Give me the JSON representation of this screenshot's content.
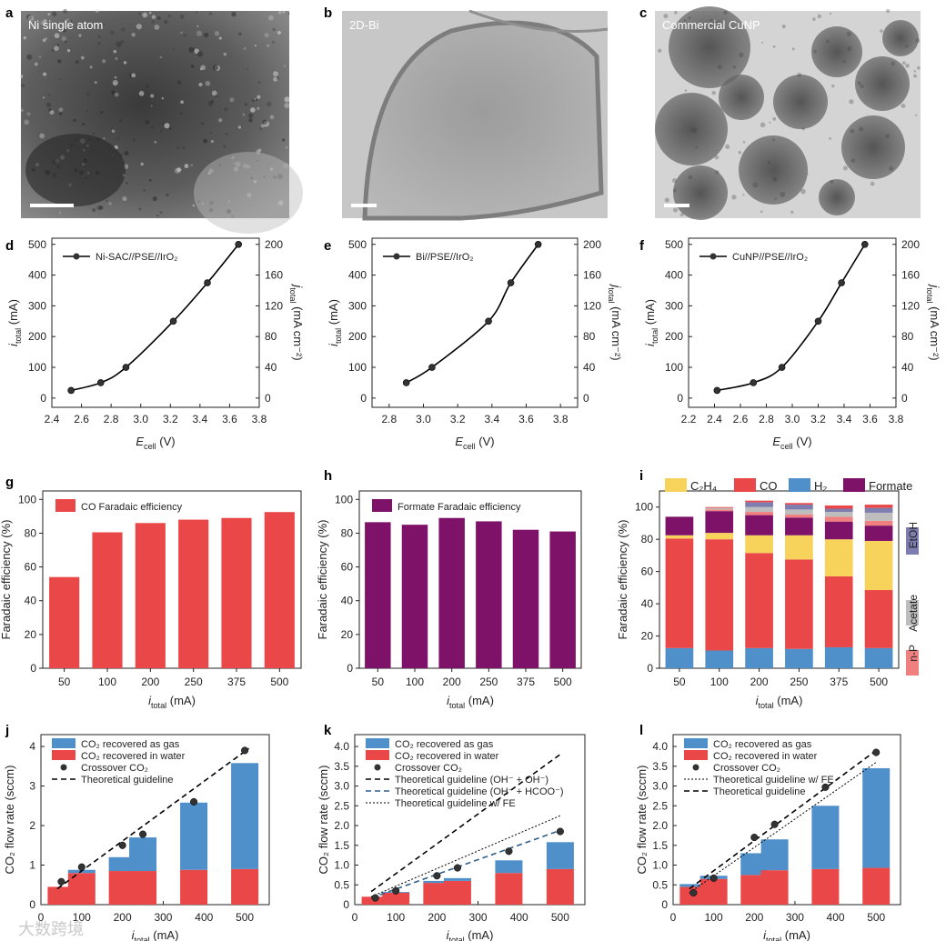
{
  "panel_letters": [
    "a",
    "b",
    "c",
    "d",
    "e",
    "f",
    "g",
    "h",
    "i",
    "j",
    "k",
    "l"
  ],
  "colors": {
    "co": "#ea4848",
    "formate": "#7e1168",
    "c2h4": "#f8d35c",
    "h2": "#4f8fca",
    "etoh": "#7d7db0",
    "acetate": "#bdbdbd",
    "np": "#f08080",
    "gas": "#4f8fca",
    "water": "#ea4848",
    "marker": "#333333",
    "curve": "#000000"
  },
  "images": [
    {
      "label": "Ni single atom",
      "tone": "dark-tem"
    },
    {
      "label": "2D-Bi",
      "tone": "light-tem"
    },
    {
      "label": "Commercial CuNP",
      "tone": "particles-tem"
    }
  ],
  "chart_data": [
    {
      "panel": "d",
      "type": "line",
      "xlabel_main": "E",
      "xlabel_sub": "cell",
      "xlabel_unit": " (V)",
      "ylabel_main": "i",
      "ylabel_sub": "total",
      "ylabel_unit": " (mA)",
      "y2label_main": "j",
      "y2label_sub": "total",
      "y2label_unit": " (mA cm⁻²)",
      "legend": "Ni-SAC//PSE//IrO₂",
      "xlim": [
        2.4,
        3.8
      ],
      "ylim": [
        -30,
        520
      ],
      "xticks": [
        "2.4",
        "2.6",
        "2.8",
        "3.0",
        "3.2",
        "3.4",
        "3.6",
        "3.8"
      ],
      "yticks": [
        "0",
        "100",
        "200",
        "300",
        "400",
        "500"
      ],
      "y2ticks": [
        "0",
        "40",
        "80",
        "120",
        "160",
        "200"
      ],
      "x": [
        2.53,
        2.73,
        2.9,
        3.22,
        3.45,
        3.66
      ],
      "y": [
        25,
        50,
        100,
        250,
        375,
        500
      ]
    },
    {
      "panel": "e",
      "type": "line",
      "xlabel_main": "E",
      "xlabel_sub": "cell",
      "xlabel_unit": " (V)",
      "ylabel_main": "i",
      "ylabel_sub": "total",
      "ylabel_unit": " (mA)",
      "y2label_main": "j",
      "y2label_sub": "total",
      "y2label_unit": " (mA cm⁻²)",
      "legend": "Bi//PSE//IrO₂",
      "xlim": [
        2.7,
        3.9
      ],
      "ylim": [
        -30,
        520
      ],
      "xticks": [
        "2.8",
        "3.0",
        "3.2",
        "3.4",
        "3.6",
        "3.8"
      ],
      "yticks": [
        "0",
        "100",
        "200",
        "300",
        "400",
        "500"
      ],
      "y2ticks": [
        "0",
        "40",
        "80",
        "120",
        "160",
        "200"
      ],
      "x": [
        2.9,
        3.05,
        3.38,
        3.51,
        3.67
      ],
      "y": [
        50,
        100,
        250,
        375,
        500
      ]
    },
    {
      "panel": "f",
      "type": "line",
      "xlabel_main": "E",
      "xlabel_sub": "cell",
      "xlabel_unit": " (V)",
      "ylabel_main": "i",
      "ylabel_sub": "total",
      "ylabel_unit": " (mA)",
      "y2label_main": "j",
      "y2label_sub": "total",
      "y2label_unit": " (mA cm⁻²)",
      "legend": "CuNP//PSE//IrO₂",
      "xlim": [
        2.2,
        3.8
      ],
      "ylim": [
        -30,
        520
      ],
      "xticks": [
        "2.2",
        "2.4",
        "2.6",
        "2.8",
        "3.0",
        "3.2",
        "3.4",
        "3.6",
        "3.8"
      ],
      "yticks": [
        "0",
        "100",
        "200",
        "300",
        "400",
        "500"
      ],
      "y2ticks": [
        "0",
        "40",
        "80",
        "120",
        "160",
        "200"
      ],
      "x": [
        2.42,
        2.7,
        2.92,
        3.2,
        3.38,
        3.56
      ],
      "y": [
        25,
        50,
        100,
        250,
        375,
        500
      ]
    },
    {
      "panel": "g",
      "type": "bar",
      "xlabel_main": "i",
      "xlabel_sub": "total",
      "xlabel_unit": " (mA)",
      "ylabel": "Faradaic efficiency (%)",
      "ylim": [
        0,
        105
      ],
      "yticks": [
        "0",
        "20",
        "40",
        "60",
        "80",
        "100"
      ],
      "categories": [
        "50",
        "100",
        "200",
        "250",
        "375",
        "500"
      ],
      "series": [
        {
          "name": "CO Faradaic efficiency",
          "values": [
            54,
            80.5,
            86,
            88,
            89,
            92.5
          ]
        }
      ]
    },
    {
      "panel": "h",
      "type": "bar",
      "xlabel_main": "i",
      "xlabel_sub": "total",
      "xlabel_unit": " (mA)",
      "ylabel": "Faradaic efficiency (%)",
      "ylim": [
        0,
        105
      ],
      "yticks": [
        "0",
        "20",
        "40",
        "60",
        "80",
        "100"
      ],
      "categories": [
        "50",
        "100",
        "200",
        "250",
        "375",
        "500"
      ],
      "series": [
        {
          "name": "Formate Faradaic efficiency",
          "values": [
            86.5,
            85,
            89,
            87,
            82,
            81
          ]
        }
      ]
    },
    {
      "panel": "i",
      "type": "bar",
      "stacked": true,
      "xlabel_main": "i",
      "xlabel_sub": "total",
      "xlabel_unit": " (mA)",
      "ylabel": "Faradaic efficiency (%)",
      "ylim": [
        0,
        110
      ],
      "yticks": [
        "0",
        "20",
        "40",
        "60",
        "80",
        "100"
      ],
      "categories": [
        "50",
        "100",
        "200",
        "250",
        "375",
        "500"
      ],
      "legend_items": [
        {
          "name": "C₂H₄",
          "key": "c2h4"
        },
        {
          "name": "CO",
          "key": "co"
        },
        {
          "name": "H₂",
          "key": "h2"
        },
        {
          "name": "Formate",
          "key": "formate"
        }
      ],
      "side_labels": [
        {
          "name": "EtOH",
          "key": "etoh"
        },
        {
          "name": "Acetate",
          "key": "acetate"
        },
        {
          "name": "n-P",
          "key": "np"
        }
      ],
      "series": [
        {
          "key": "h2",
          "values": [
            12.5,
            11,
            12.5,
            12,
            13,
            12.5
          ]
        },
        {
          "key": "co",
          "values": [
            68,
            69,
            59,
            55.5,
            44,
            36
          ]
        },
        {
          "key": "c2h4",
          "values": [
            2,
            4,
            11,
            15,
            23,
            30.5
          ]
        },
        {
          "key": "formate",
          "values": [
            11.5,
            13.5,
            12.5,
            11,
            11,
            9.5
          ]
        },
        {
          "key": "np",
          "values": [
            0,
            1,
            2,
            2,
            3,
            3
          ]
        },
        {
          "key": "acetate",
          "values": [
            0,
            1,
            3,
            3,
            3,
            5
          ]
        },
        {
          "key": "etoh",
          "values": [
            0,
            0,
            3,
            3,
            2,
            3
          ]
        },
        {
          "key": "co",
          "values": [
            0,
            0.5,
            1,
            1,
            2,
            2
          ]
        }
      ]
    },
    {
      "panel": "j",
      "type": "bar",
      "stacked": true,
      "xlabel_main": "i",
      "xlabel_sub": "total",
      "xlabel_unit": " (mA)",
      "ylabel": "CO₂ flow rate (sccm)",
      "xlim": [
        0,
        560
      ],
      "ylim": [
        0,
        4.3
      ],
      "xticks": [
        "0",
        "100",
        "200",
        "300",
        "400",
        "500"
      ],
      "yticks": [
        "0",
        "1",
        "2",
        "3",
        "4"
      ],
      "legend_items": [
        "CO₂ recovered as gas",
        "CO₂ recovered in water",
        "Crossover CO₂",
        "Theoretical guideline"
      ],
      "x": [
        50,
        100,
        200,
        250,
        375,
        500
      ],
      "water": [
        0.45,
        0.8,
        0.85,
        0.85,
        0.88,
        0.9
      ],
      "gas": [
        0,
        0.08,
        0.35,
        0.85,
        1.7,
        2.68
      ],
      "crossover": [
        0.58,
        0.95,
        1.5,
        1.78,
        2.6,
        3.9
      ],
      "guideline": [
        [
          40,
          0.4
        ],
        [
          510,
          3.95
        ]
      ]
    },
    {
      "panel": "k",
      "type": "bar",
      "stacked": true,
      "xlabel_main": "i",
      "xlabel_sub": "total",
      "xlabel_unit": " (mA)",
      "ylabel": "CO₂ flow rate (sccm)",
      "xlim": [
        0,
        560
      ],
      "ylim": [
        0,
        4.3
      ],
      "xticks": [
        "0",
        "100",
        "200",
        "300",
        "400",
        "500"
      ],
      "yticks": [
        "0",
        "0.5",
        "1.0",
        "1.5",
        "2.0",
        "2.5",
        "3.0",
        "3.5",
        "4.0"
      ],
      "legend_items": [
        "CO₂ recovered as gas",
        "CO₂ recovered in water",
        "Crossover CO₂",
        "Theoretical guideline (OH⁻ + OH⁻)",
        "Theoretical guideline (OH⁻ + HCOO⁻)",
        "Theoretical guideline w/ FE"
      ],
      "x": [
        50,
        100,
        200,
        250,
        375,
        500
      ],
      "water": [
        0.2,
        0.3,
        0.55,
        0.6,
        0.8,
        0.9
      ],
      "gas": [
        0,
        0.02,
        0.05,
        0.07,
        0.32,
        0.68
      ],
      "crossover": [
        0.17,
        0.35,
        0.73,
        0.93,
        1.35,
        1.85
      ],
      "guide1": [
        [
          40,
          0.33
        ],
        [
          500,
          3.8
        ]
      ],
      "guide2": [
        [
          40,
          0.17
        ],
        [
          500,
          1.88
        ]
      ],
      "guide3": [
        [
          40,
          0.2
        ],
        [
          500,
          2.25
        ]
      ]
    },
    {
      "panel": "l",
      "type": "bar",
      "stacked": true,
      "xlabel_main": "i",
      "xlabel_sub": "total",
      "xlabel_unit": " (mA)",
      "ylabel": "CO₂ flow rate (sccm)",
      "xlim": [
        0,
        560
      ],
      "ylim": [
        0,
        4.3
      ],
      "xticks": [
        "0",
        "100",
        "200",
        "300",
        "400",
        "500"
      ],
      "yticks": [
        "0",
        "0.5",
        "1.0",
        "1.5",
        "2.0",
        "2.5",
        "3.0",
        "3.5",
        "4.0"
      ],
      "legend_items": [
        "CO₂ recovered as gas",
        "CO₂ recovered in water",
        "Crossover CO₂",
        "Theoretical guideline w/ FE",
        "Theoretical guideline"
      ],
      "x": [
        50,
        100,
        200,
        250,
        375,
        500
      ],
      "water": [
        0.45,
        0.65,
        0.75,
        0.87,
        0.9,
        0.93
      ],
      "gas": [
        0.07,
        0.08,
        0.55,
        0.78,
        1.6,
        2.52
      ],
      "crossover": [
        0.3,
        0.67,
        1.7,
        2.03,
        2.97,
        3.85
      ],
      "guide1": [
        [
          40,
          0.4
        ],
        [
          500,
          3.9
        ]
      ],
      "guide2": [
        [
          40,
          0.3
        ],
        [
          500,
          3.6
        ]
      ]
    }
  ],
  "watermark": "大数跨境"
}
